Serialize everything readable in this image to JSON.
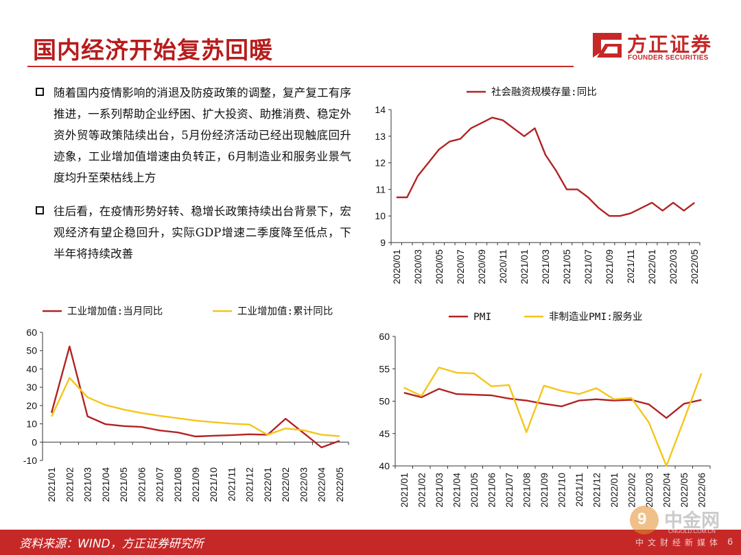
{
  "header": {
    "title": "国内经济开始复苏回暖",
    "logo_cn": "方正证券",
    "logo_en": "FOUNDER SECURITIES"
  },
  "bullets": [
    {
      "text": "随着国内疫情影响的消退及防疫政策的调整，复产复工有序推进，一系列帮助企业纾困、扩大投资、助推消费、稳定外资外贸等政策陆续出台，5月份经济活动已经出现触底回升迹象，工业增加值增速由负转正，6月制造业和服务业景气度均升至荣枯线上方"
    },
    {
      "text": "往后看，在疫情形势好转、稳增长政策持续出台背景下，宏观经济有望企稳回升，实际GDP增速二季度降至低点，下半年将持续改善"
    }
  ],
  "footer": {
    "source": "资料来源：WIND，方正证券研究所",
    "page": "6"
  },
  "watermark": {
    "name": "中金网",
    "url": "CNGOLD.COM.CN",
    "media": "中文财经新媒体"
  },
  "colors": {
    "red": "#b22222",
    "yellow": "#f5c518",
    "brand": "#c62828"
  },
  "chart_data": [
    {
      "id": "tsf",
      "type": "line",
      "title": "",
      "xlabel": "",
      "ylabel": "",
      "ylim": [
        9,
        14
      ],
      "yticks": [
        9,
        10,
        11,
        12,
        13,
        14
      ],
      "grid": false,
      "legend": "top",
      "x": [
        "2020/01",
        "2020/02",
        "2020/03",
        "2020/04",
        "2020/05",
        "2020/06",
        "2020/07",
        "2020/08",
        "2020/09",
        "2020/10",
        "2020/11",
        "2020/12",
        "2021/01",
        "2021/02",
        "2021/03",
        "2021/04",
        "2021/05",
        "2021/06",
        "2021/07",
        "2021/08",
        "2021/09",
        "2021/10",
        "2021/11",
        "2021/12",
        "2022/01",
        "2022/02",
        "2022/03",
        "2022/04",
        "2022/05"
      ],
      "xtick_labels": [
        "2020/01",
        "2020/03",
        "2020/05",
        "2020/07",
        "2020/09",
        "2020/11",
        "2021/01",
        "2021/03",
        "2021/05",
        "2021/07",
        "2021/09",
        "2021/11",
        "2022/01",
        "2022/03",
        "2022/05"
      ],
      "series": [
        {
          "name": "社会融资规模存量:同比",
          "color": "#b22222",
          "values": [
            10.7,
            10.7,
            11.5,
            12.0,
            12.5,
            12.8,
            12.9,
            13.3,
            13.5,
            13.7,
            13.6,
            13.3,
            13.0,
            13.3,
            12.3,
            11.7,
            11.0,
            11.0,
            10.7,
            10.3,
            10.0,
            10.0,
            10.1,
            10.3,
            10.5,
            10.2,
            10.5,
            10.2,
            10.5
          ]
        }
      ]
    },
    {
      "id": "ind",
      "type": "line",
      "title": "",
      "xlabel": "",
      "ylabel": "",
      "ylim": [
        -10,
        60
      ],
      "yticks": [
        -10,
        0,
        10,
        20,
        30,
        40,
        50,
        60
      ],
      "grid": false,
      "legend": "top",
      "x": [
        "2021/01",
        "2021/02",
        "2021/03",
        "2021/04",
        "2021/05",
        "2021/06",
        "2021/07",
        "2021/08",
        "2021/09",
        "2021/10",
        "2021/11",
        "2021/12",
        "2022/01",
        "2022/02",
        "2022/03",
        "2022/04",
        "2022/05"
      ],
      "xtick_labels": [
        "2021/01",
        "2021/02",
        "2021/03",
        "2021/04",
        "2021/05",
        "2021/06",
        "2021/07",
        "2021/08",
        "2021/09",
        "2021/10",
        "2021/11",
        "2021/12",
        "2022/01",
        "2022/02",
        "2022/03",
        "2022/04",
        "2022/05"
      ],
      "series": [
        {
          "name": "工业增加值:当月同比",
          "color": "#b22222",
          "values": [
            16,
            52.3,
            14.1,
            9.8,
            8.8,
            8.3,
            6.4,
            5.3,
            3.1,
            3.5,
            3.8,
            4.3,
            4.0,
            12.8,
            5.0,
            -2.9,
            0.7
          ]
        },
        {
          "name": "工业增加值:累计同比",
          "color": "#f5c518",
          "values": [
            14,
            35.1,
            24.5,
            20.3,
            17.8,
            15.9,
            14.4,
            13.1,
            11.8,
            10.9,
            10.1,
            9.6,
            4.0,
            7.5,
            6.5,
            4.0,
            3.3
          ]
        }
      ]
    },
    {
      "id": "pmi",
      "type": "line",
      "title": "",
      "xlabel": "",
      "ylabel": "",
      "ylim": [
        40,
        60
      ],
      "yticks": [
        40,
        45,
        50,
        55,
        60
      ],
      "grid": false,
      "legend": "top",
      "x": [
        "2021/01",
        "2021/02",
        "2021/03",
        "2021/04",
        "2021/05",
        "2021/06",
        "2021/07",
        "2021/08",
        "2021/09",
        "2021/10",
        "2021/11",
        "2021/12",
        "2022/01",
        "2022/02",
        "2022/03",
        "2022/04",
        "2022/05",
        "2022/06"
      ],
      "xtick_labels": [
        "2021/01",
        "2021/02",
        "2021/03",
        "2021/04",
        "2021/05",
        "2021/06",
        "2021/07",
        "2021/08",
        "2021/09",
        "2021/10",
        "2021/11",
        "2021/12",
        "2022/01",
        "2022/02",
        "2022/03",
        "2022/04",
        "2022/05",
        "2022/06"
      ],
      "series": [
        {
          "name": "PMI",
          "color": "#b22222",
          "values": [
            51.3,
            50.6,
            51.9,
            51.1,
            51.0,
            50.9,
            50.4,
            50.1,
            49.6,
            49.2,
            50.1,
            50.3,
            50.1,
            50.2,
            49.5,
            47.4,
            49.6,
            50.2
          ]
        },
        {
          "name": "非制造业PMI:服务业",
          "color": "#f5c518",
          "values": [
            52.1,
            50.8,
            55.2,
            54.4,
            54.3,
            52.3,
            52.5,
            45.2,
            52.4,
            51.6,
            51.1,
            52.0,
            50.3,
            50.5,
            46.7,
            40.0,
            47.1,
            54.3
          ]
        }
      ]
    }
  ]
}
